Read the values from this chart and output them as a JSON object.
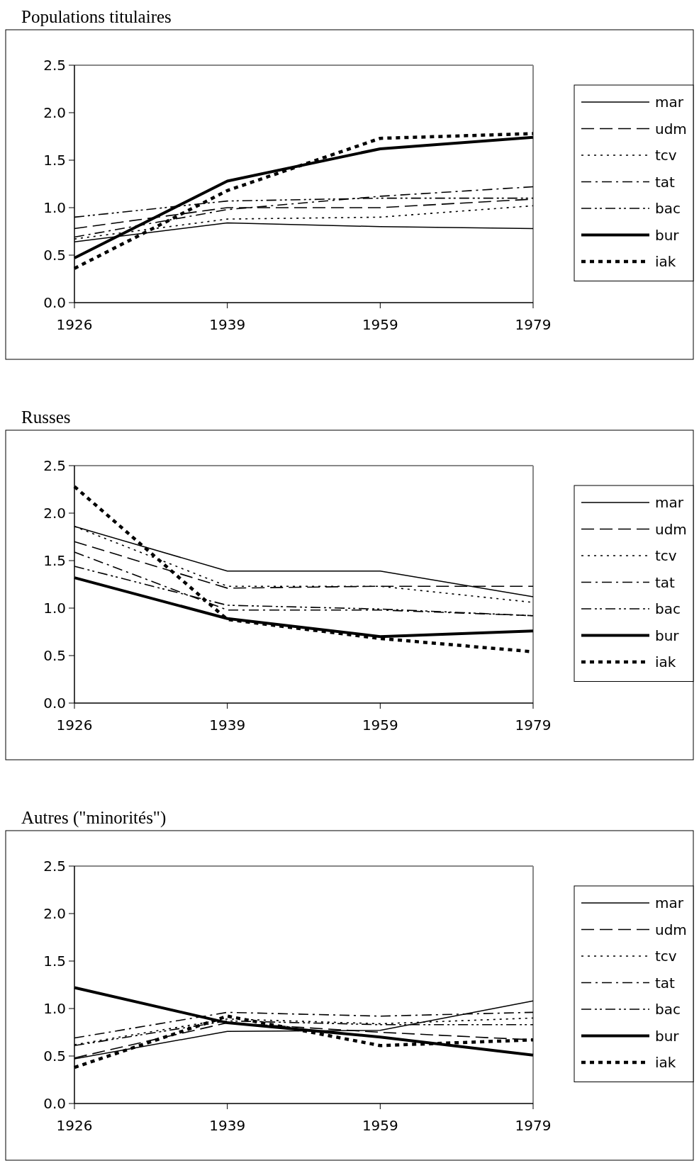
{
  "chart_data": [
    {
      "type": "line",
      "title": "Populations titulaires",
      "categories": [
        "1926",
        "1939",
        "1959",
        "1979"
      ],
      "ylim": [
        0,
        2.5
      ],
      "yticks": [
        {
          "value": 0,
          "label": "0.0"
        },
        0.5,
        {
          "value": 1,
          "label": "1.0"
        },
        1.5,
        {
          "value": 2,
          "label": "2.0"
        },
        2.5
      ],
      "legend": "right",
      "grid": false,
      "series": [
        {
          "name": "mar",
          "color": "#000000",
          "line_style": "solid",
          "values": [
            0.64,
            0.84,
            0.8,
            0.78
          ]
        },
        {
          "name": "udm",
          "color": "#000000",
          "line_style": "dashed",
          "values": [
            0.78,
            1.0,
            1.0,
            1.09
          ]
        },
        {
          "name": "tcv",
          "color": "#000000",
          "line_style": "dotted",
          "values": [
            0.67,
            0.88,
            0.9,
            1.02
          ]
        },
        {
          "name": "tat",
          "color": "#000000",
          "line_style": "dashed",
          "values": [
            0.69,
            0.98,
            1.12,
            1.22
          ]
        },
        {
          "name": "bac",
          "color": "#000000",
          "line_style": "dashed",
          "values": [
            0.9,
            1.07,
            1.1,
            1.1
          ]
        },
        {
          "name": "bur",
          "color": "#000000",
          "line_style": "solid",
          "values": [
            0.47,
            1.28,
            1.62,
            1.74
          ]
        },
        {
          "name": "iak",
          "color": "#000000",
          "line_style": "dotted",
          "values": [
            0.36,
            1.18,
            1.73,
            1.78
          ]
        }
      ]
    },
    {
      "type": "line",
      "title": "Russes",
      "categories": [
        "1926",
        "1939",
        "1959",
        "1979"
      ],
      "ylim": [
        0,
        2.5
      ],
      "yticks": [
        {
          "value": 0,
          "label": "0.0"
        },
        0.5,
        {
          "value": 1,
          "label": "1.0"
        },
        1.5,
        {
          "value": 2,
          "label": "2.0"
        },
        2.5
      ],
      "legend": "right",
      "grid": false,
      "series": [
        {
          "name": "mar",
          "color": "#000000",
          "line_style": "solid",
          "values": [
            1.86,
            1.39,
            1.39,
            1.12
          ]
        },
        {
          "name": "udm",
          "color": "#000000",
          "line_style": "dashed",
          "values": [
            1.7,
            1.21,
            1.23,
            1.23
          ]
        },
        {
          "name": "tcv",
          "color": "#000000",
          "line_style": "dotted",
          "values": [
            1.86,
            1.23,
            1.23,
            1.06
          ]
        },
        {
          "name": "tat",
          "color": "#000000",
          "line_style": "dashed",
          "values": [
            1.59,
            0.98,
            0.98,
            0.92
          ]
        },
        {
          "name": "bac",
          "color": "#000000",
          "line_style": "dashed",
          "values": [
            1.44,
            1.03,
            0.99,
            0.92
          ]
        },
        {
          "name": "bur",
          "color": "#000000",
          "line_style": "solid",
          "values": [
            1.32,
            0.89,
            0.7,
            0.76
          ]
        },
        {
          "name": "iak",
          "color": "#000000",
          "line_style": "dotted",
          "values": [
            2.28,
            0.88,
            0.68,
            0.54
          ]
        }
      ]
    },
    {
      "type": "line",
      "title": "Autres (\"minorités\")",
      "categories": [
        "1926",
        "1939",
        "1959",
        "1979"
      ],
      "ylim": [
        0,
        2.5
      ],
      "yticks": [
        {
          "value": 0,
          "label": "0.0"
        },
        0.5,
        {
          "value": 1,
          "label": "1.0"
        },
        1.5,
        {
          "value": 2,
          "label": "2.0"
        },
        2.5
      ],
      "legend": "right",
      "grid": false,
      "series": [
        {
          "name": "mar",
          "color": "#000000",
          "line_style": "solid",
          "values": [
            0.47,
            0.76,
            0.77,
            1.08
          ]
        },
        {
          "name": "udm",
          "color": "#000000",
          "line_style": "dashed",
          "values": [
            0.48,
            0.85,
            0.75,
            0.67
          ]
        },
        {
          "name": "tcv",
          "color": "#000000",
          "line_style": "dotted",
          "values": [
            0.62,
            0.89,
            0.84,
            0.9
          ]
        },
        {
          "name": "tat",
          "color": "#000000",
          "line_style": "dashed",
          "values": [
            0.69,
            0.96,
            0.92,
            0.96
          ]
        },
        {
          "name": "bac",
          "color": "#000000",
          "line_style": "dashed",
          "values": [
            0.61,
            0.87,
            0.83,
            0.83
          ]
        },
        {
          "name": "bur",
          "color": "#000000",
          "line_style": "solid",
          "values": [
            1.22,
            0.85,
            0.7,
            0.51
          ]
        },
        {
          "name": "iak",
          "color": "#000000",
          "line_style": "dotted",
          "values": [
            0.38,
            0.92,
            0.61,
            0.67
          ]
        }
      ]
    }
  ]
}
